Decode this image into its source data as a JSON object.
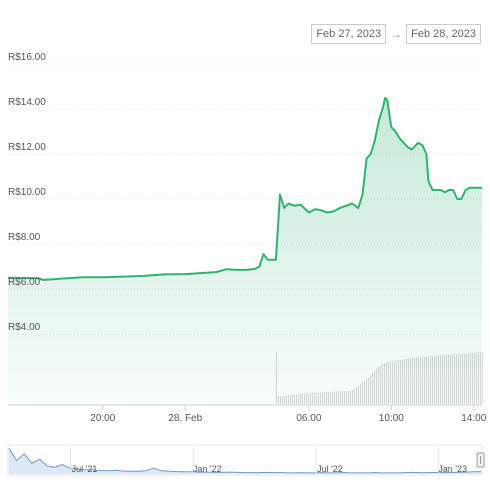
{
  "date_range": {
    "from": "Feb 27, 2023",
    "separator": "→",
    "to": "Feb 28, 2023"
  },
  "chart_data": {
    "type": "area",
    "currency_prefix": "R$",
    "ylim": [
      4,
      16
    ],
    "yticks": [
      "R$16.00",
      "R$14.00",
      "R$12.00",
      "R$10.00",
      "R$8.00",
      "R$6.00",
      "R$4.00"
    ],
    "ytick_values": [
      16,
      14,
      12,
      10,
      8,
      6,
      4
    ],
    "xlim": [
      -8.6,
      14.4
    ],
    "xticks": [
      "20:00",
      "28. Feb",
      "06:00",
      "10:00",
      "14:00"
    ],
    "xtick_values": [
      -4,
      0,
      6,
      10,
      14
    ],
    "line_color": "#2fb370",
    "series": [
      {
        "x": [
          -8.6,
          -7.1,
          -6.9,
          -6.0,
          -5.0,
          -4.0,
          -3.0,
          -2.0,
          -1.0,
          0.0,
          1.0,
          1.5,
          2.0,
          2.5,
          3.0,
          3.4,
          3.6,
          3.7,
          3.8,
          4.0,
          4.1,
          4.2,
          4.3,
          4.4,
          4.6,
          4.8,
          5.0,
          5.3,
          5.6,
          6.0,
          6.3,
          6.6,
          6.9,
          7.2,
          7.5,
          7.8,
          8.1,
          8.4,
          8.6,
          8.8,
          9.0,
          9.2,
          9.4,
          9.6,
          9.7,
          9.8,
          10.0,
          10.2,
          10.4,
          10.6,
          10.8,
          11.0,
          11.3,
          11.5,
          11.7,
          11.8,
          12.0,
          12.2,
          12.4,
          12.6,
          12.8,
          13.0,
          13.2,
          13.4,
          13.6,
          13.8,
          14.0,
          14.2,
          14.4
        ],
        "y": [
          6.5,
          6.48,
          6.4,
          6.46,
          6.52,
          6.52,
          6.55,
          6.58,
          6.65,
          6.66,
          6.72,
          6.75,
          6.88,
          6.85,
          6.85,
          6.9,
          7.0,
          7.3,
          7.55,
          7.3,
          7.3,
          7.3,
          7.3,
          7.3,
          10.2,
          9.6,
          9.8,
          9.7,
          9.75,
          9.4,
          9.55,
          9.5,
          9.4,
          9.45,
          9.6,
          9.7,
          9.8,
          9.6,
          10.2,
          11.8,
          12.0,
          12.6,
          13.5,
          14.1,
          14.5,
          14.4,
          13.2,
          13.0,
          12.7,
          12.5,
          12.3,
          12.2,
          12.5,
          12.4,
          12.0,
          10.8,
          10.4,
          10.4,
          10.4,
          10.3,
          10.4,
          10.4,
          10.0,
          10.0,
          10.4,
          10.5,
          10.5,
          10.5,
          10.5
        ]
      }
    ],
    "volume": [
      [
        4.4,
        0.1
      ],
      [
        4.5,
        0.12
      ],
      [
        5.0,
        0.14
      ],
      [
        5.6,
        0.17
      ],
      [
        6.3,
        0.18
      ],
      [
        7.0,
        0.19
      ],
      [
        7.5,
        0.2
      ],
      [
        8.0,
        0.21
      ],
      [
        8.3,
        0.26
      ],
      [
        8.5,
        0.32
      ],
      [
        8.8,
        0.4
      ],
      [
        9.0,
        0.46
      ],
      [
        9.2,
        0.54
      ],
      [
        9.5,
        0.62
      ],
      [
        9.8,
        0.66
      ],
      [
        10.2,
        0.68
      ],
      [
        11.0,
        0.72
      ],
      [
        11.8,
        0.75
      ],
      [
        12.6,
        0.77
      ],
      [
        13.4,
        0.79
      ],
      [
        14.0,
        0.8
      ],
      [
        14.4,
        0.81
      ]
    ],
    "navigator": {
      "xticks": [
        "Jul '21",
        "Jan '22",
        "Jul '22",
        "Jan '23"
      ],
      "y": [
        0.95,
        0.5,
        0.75,
        0.4,
        0.55,
        0.3,
        0.25,
        0.35,
        0.22,
        0.18,
        0.16,
        0.15,
        0.13,
        0.12,
        0.14,
        0.11,
        0.1,
        0.1,
        0.12,
        0.22,
        0.12,
        0.1,
        0.09,
        0.08,
        0.08,
        0.07,
        0.07,
        0.06,
        0.06,
        0.07,
        0.06,
        0.05,
        0.05,
        0.05,
        0.06,
        0.05,
        0.05,
        0.04,
        0.05,
        0.04,
        0.04,
        0.05,
        0.04,
        0.04,
        0.05,
        0.04,
        0.04,
        0.04,
        0.05,
        0.04,
        0.04,
        0.04,
        0.05,
        0.06,
        0.05,
        0.05,
        0.06,
        0.05,
        0.06,
        0.06,
        0.07,
        0.08,
        0.09
      ]
    }
  }
}
